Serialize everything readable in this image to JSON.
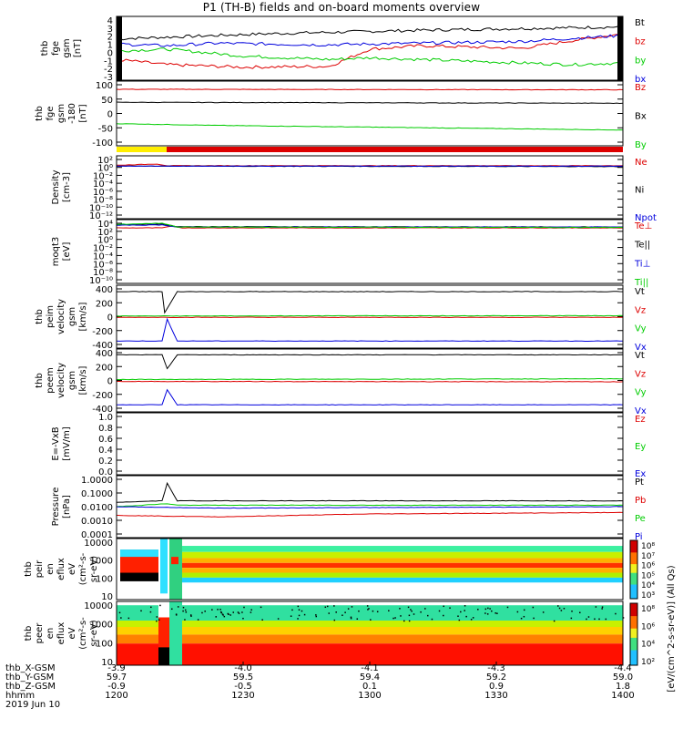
{
  "title": "P1 (TH-B) fields and on-board moments overview",
  "colors": {
    "black": "#000000",
    "red": "#dd0000",
    "green": "#00cc00",
    "blue": "#0000dd",
    "yellow": "#ffee00"
  },
  "panels": [
    {
      "ylabel": [
        "thb",
        "fge",
        "gsm",
        "[nT]"
      ],
      "ticks": [
        "4",
        "3",
        "2",
        "1",
        "0",
        "-1",
        "-2",
        "-3"
      ],
      "legend": [
        [
          "Bt",
          "black"
        ],
        [
          "bz",
          "red"
        ],
        [
          "by",
          "green"
        ],
        [
          "bx",
          "blue"
        ]
      ]
    },
    {
      "ylabel": [
        "thb",
        "fge",
        "gsm",
        "-180",
        "[nT]"
      ],
      "ticks": [
        "100",
        "50",
        "0",
        "-50",
        "-100"
      ],
      "legend": [
        [
          "Bz",
          "red"
        ],
        [
          "Bx",
          "black"
        ],
        [
          "By",
          "green"
        ]
      ]
    },
    {
      "ylabel": [
        "Density",
        "[cm-3]"
      ],
      "ticks": [
        "10²",
        "10⁰",
        "10⁻²",
        "10⁻⁴",
        "10⁻⁶",
        "10⁻⁸",
        "10⁻¹⁰",
        "10⁻¹²"
      ],
      "legend": [
        [
          "Ne",
          "red"
        ],
        [
          "Ni",
          "black"
        ],
        [
          "Npot",
          "blue"
        ]
      ]
    },
    {
      "ylabel": [
        "moqt3",
        "[eV]"
      ],
      "ticks": [
        "10⁴",
        "10²",
        "10⁰",
        "10⁻²",
        "10⁻⁴",
        "10⁻⁶",
        "10⁻⁸",
        "10⁻¹⁰"
      ],
      "legend": [
        [
          "Te⊥",
          "red"
        ],
        [
          "Te||",
          "black"
        ],
        [
          "Ti⊥",
          "blue"
        ],
        [
          "Ti||",
          "green"
        ]
      ]
    },
    {
      "ylabel": [
        "thb",
        "peim",
        "velocity",
        "gsm",
        "[km/s]"
      ],
      "ticks": [
        "400",
        "200",
        "0",
        "-200",
        "-400"
      ],
      "legend": [
        [
          "Vt",
          "black"
        ],
        [
          "Vz",
          "red"
        ],
        [
          "Vy",
          "green"
        ],
        [
          "Vx",
          "blue"
        ]
      ]
    },
    {
      "ylabel": [
        "thb",
        "peem",
        "velocity",
        "gsm",
        "[km/s]"
      ],
      "ticks": [
        "400",
        "200",
        "0",
        "-200",
        "-400"
      ],
      "legend": [
        [
          "Vt",
          "black"
        ],
        [
          "Vz",
          "red"
        ],
        [
          "Vy",
          "green"
        ],
        [
          "Vx",
          "blue"
        ]
      ]
    },
    {
      "ylabel": [
        "E=-VxB",
        "[mV/m]"
      ],
      "ticks": [
        "1.0",
        "0.8",
        "0.6",
        "0.4",
        "0.2",
        "0.0"
      ],
      "legend": [
        [
          "Ez",
          "red"
        ],
        [
          "Ey",
          "green"
        ],
        [
          "Ex",
          "blue"
        ]
      ]
    },
    {
      "ylabel": [
        "Pressure",
        "[nPa]"
      ],
      "ticks": [
        "1.0000",
        "0.1000",
        "0.0100",
        "0.0010",
        "0.0001"
      ],
      "legend": [
        [
          "Pt",
          "black"
        ],
        [
          "Pb",
          "red"
        ],
        [
          "Pe",
          "green"
        ],
        [
          "Pi",
          "blue"
        ]
      ]
    },
    {
      "ylabel": [
        "thb",
        "peir",
        "en",
        "eflux",
        "eV",
        "(cm²-s-",
        "sr-eV)"
      ],
      "ticks": [
        "10000",
        "1000",
        "100",
        "10"
      ],
      "legend": []
    },
    {
      "ylabel": [
        "thb",
        "peer",
        "en",
        "eflux",
        "eV",
        "(cm²-s-",
        "sr-eV)"
      ],
      "ticks": [
        "10000",
        "1000",
        "100",
        "10"
      ],
      "legend": []
    }
  ],
  "colorbar_ticks": [
    "10⁸",
    "10⁷",
    "10⁶",
    "10⁵",
    "10⁴",
    "10³"
  ],
  "colorbar_ticks2": [
    "10⁸",
    "10⁶",
    "10⁴",
    "10²"
  ],
  "colorbar_label": "[eV/(cm^2-s-sr-eV)] (All Qs)",
  "footer": {
    "row_labels": [
      "thb_X-GSM",
      "thb_Y-GSM",
      "thb_Z-GSM",
      "hhmm",
      "2019 Jun 10"
    ],
    "columns": [
      {
        "x": "-3.9",
        "y": "59.7",
        "z": "-0.9",
        "t": "1200"
      },
      {
        "x": "-4.0",
        "y": "59.5",
        "z": "-0.5",
        "t": "1230"
      },
      {
        "x": "-4.1",
        "y": "59.4",
        "z": "0.1",
        "t": "1300"
      },
      {
        "x": "-4.3",
        "y": "59.2",
        "z": "0.9",
        "t": "1330"
      },
      {
        "x": "-4.4",
        "y": "59.0",
        "z": "1.8",
        "t": "1400"
      }
    ]
  },
  "chart_data": {
    "type": "line",
    "title": "P1 (TH-B) fields and on-board moments overview",
    "time_axis": {
      "label": "hhmm",
      "ticks": [
        "1200",
        "1230",
        "1300",
        "1330",
        "1400"
      ],
      "date": "2019 Jun 10"
    },
    "panels": [
      {
        "ylim": [
          -3,
          4
        ],
        "series": [
          {
            "name": "Bt",
            "points": [
              [
                0,
                1.6
              ],
              [
                0.1,
                1.8
              ],
              [
                0.3,
                2.2
              ],
              [
                0.6,
                2.6
              ],
              [
                0.9,
                2.9
              ],
              [
                1,
                3.0
              ]
            ]
          },
          {
            "name": "bz",
            "points": [
              [
                0,
                -0.8
              ],
              [
                0.1,
                -1.4
              ],
              [
                0.25,
                -1.7
              ],
              [
                0.42,
                -1.6
              ],
              [
                0.5,
                0.4
              ],
              [
                0.6,
                0.8
              ],
              [
                0.8,
                0.5
              ],
              [
                0.9,
                1.4
              ],
              [
                1,
                2.2
              ]
            ]
          },
          {
            "name": "by",
            "points": [
              [
                0,
                0.2
              ],
              [
                0.1,
                0.4
              ],
              [
                0.25,
                -0.4
              ],
              [
                0.42,
                -0.8
              ],
              [
                0.5,
                -0.6
              ],
              [
                0.7,
                -1.0
              ],
              [
                0.9,
                -1.4
              ],
              [
                1,
                -1.2
              ]
            ]
          },
          {
            "name": "bx",
            "points": [
              [
                0,
                1.0
              ],
              [
                0.1,
                0.8
              ],
              [
                0.2,
                1.1
              ],
              [
                0.4,
                0.9
              ],
              [
                0.6,
                1.1
              ],
              [
                0.8,
                1.3
              ],
              [
                1,
                2.0
              ]
            ]
          }
        ]
      },
      {
        "ylim": [
          -130,
          110
        ],
        "series": [
          {
            "name": "Bz",
            "points": [
              [
                0,
                85
              ],
              [
                1,
                83
              ]
            ]
          },
          {
            "name": "Bx",
            "points": [
              [
                0,
                34
              ],
              [
                1,
                30
              ]
            ]
          },
          {
            "name": "By",
            "points": [
              [
                0,
                -50
              ],
              [
                0.2,
                -57
              ],
              [
                1,
                -75
              ]
            ]
          }
        ]
      },
      {
        "ylim": [
          -12,
          2
        ],
        "log": true,
        "series": [
          {
            "name": "Ne",
            "points": [
              [
                0,
                0.2
              ],
              [
                0.08,
                0.5
              ],
              [
                0.1,
                0.1
              ],
              [
                1,
                0.1
              ]
            ]
          },
          {
            "name": "Ni",
            "points": [
              [
                0,
                0.0
              ],
              [
                1,
                -0.1
              ]
            ]
          },
          {
            "name": "Npot",
            "points": [
              [
                0,
                0.0
              ],
              [
                1,
                0.0
              ]
            ]
          }
        ]
      },
      {
        "ylim": [
          -10,
          4
        ],
        "log": true,
        "series": [
          {
            "name": "Te⊥",
            "points": [
              [
                0,
                2.5
              ],
              [
                0.09,
                2.5
              ],
              [
                0.11,
                2.9
              ],
              [
                0.13,
                2.5
              ],
              [
                1,
                2.5
              ]
            ]
          },
          {
            "name": "Te||",
            "points": [
              [
                0,
                3.2
              ],
              [
                0.09,
                3.4
              ],
              [
                0.12,
                2.8
              ],
              [
                1,
                2.7
              ]
            ]
          },
          {
            "name": "Ti⊥",
            "points": [
              [
                0,
                3.1
              ],
              [
                0.09,
                3.2
              ],
              [
                0.12,
                2.7
              ],
              [
                1,
                2.7
              ]
            ]
          },
          {
            "name": "Ti||",
            "points": [
              [
                0,
                3.3
              ],
              [
                0.09,
                3.6
              ],
              [
                0.12,
                2.7
              ],
              [
                1,
                2.6
              ]
            ]
          }
        ]
      },
      {
        "ylim": [
          -450,
          450
        ],
        "series": [
          {
            "name": "Vt",
            "points": [
              [
                0,
                380
              ],
              [
                0.09,
                380
              ],
              [
                0.095,
                60
              ],
              [
                0.12,
                380
              ],
              [
                1,
                380
              ]
            ]
          },
          {
            "name": "Vz",
            "points": [
              [
                0,
                -10
              ],
              [
                1,
                -10
              ]
            ]
          },
          {
            "name": "Vy",
            "points": [
              [
                0,
                10
              ],
              [
                1,
                15
              ]
            ]
          },
          {
            "name": "Vx",
            "points": [
              [
                0,
                -370
              ],
              [
                0.09,
                -370
              ],
              [
                0.1,
                -40
              ],
              [
                0.12,
                -370
              ],
              [
                1,
                -370
              ]
            ]
          }
        ]
      },
      {
        "ylim": [
          -450,
          450
        ],
        "series": [
          {
            "name": "Vt",
            "points": [
              [
                0,
                390
              ],
              [
                0.09,
                390
              ],
              [
                0.1,
                180
              ],
              [
                0.12,
                390
              ],
              [
                1,
                390
              ]
            ]
          },
          {
            "name": "Vz",
            "points": [
              [
                0,
                -15
              ],
              [
                1,
                -20
              ]
            ]
          },
          {
            "name": "Vy",
            "points": [
              [
                0,
                15
              ],
              [
                1,
                25
              ]
            ]
          },
          {
            "name": "Vx",
            "points": [
              [
                0,
                -370
              ],
              [
                0.09,
                -370
              ],
              [
                0.1,
                -140
              ],
              [
                0.12,
                -370
              ],
              [
                1,
                -370
              ]
            ]
          }
        ]
      },
      {
        "ylim": [
          0,
          1
        ],
        "series": []
      },
      {
        "ylim": [
          -4,
          0
        ],
        "log": true,
        "series": [
          {
            "name": "Pt",
            "points": [
              [
                0,
                -1.7
              ],
              [
                0.09,
                -1.6
              ],
              [
                0.1,
                -0.4
              ],
              [
                0.12,
                -1.6
              ],
              [
                1,
                -1.6
              ]
            ]
          },
          {
            "name": "Pb",
            "points": [
              [
                0,
                -2.6
              ],
              [
                0.2,
                -2.7
              ],
              [
                0.5,
                -2.5
              ],
              [
                1,
                -2.4
              ]
            ]
          },
          {
            "name": "Pe",
            "points": [
              [
                0,
                -2.0
              ],
              [
                0.1,
                -1.8
              ],
              [
                0.12,
                -1.9
              ],
              [
                1,
                -1.9
              ]
            ]
          },
          {
            "name": "Pi",
            "points": [
              [
                0,
                -2.0
              ],
              [
                0.2,
                -2.1
              ],
              [
                1,
                -2.0
              ]
            ]
          }
        ]
      }
    ],
    "spectrograms": [
      {
        "name": "thb peir en eflux",
        "ylim": [
          5,
          20000
        ],
        "log": true,
        "peak_energy_eV": [
          500,
          1500
        ]
      },
      {
        "name": "thb peer en eflux",
        "ylim": [
          5,
          20000
        ],
        "log": true,
        "peak_energy_eV": [
          5,
          100
        ]
      }
    ]
  }
}
